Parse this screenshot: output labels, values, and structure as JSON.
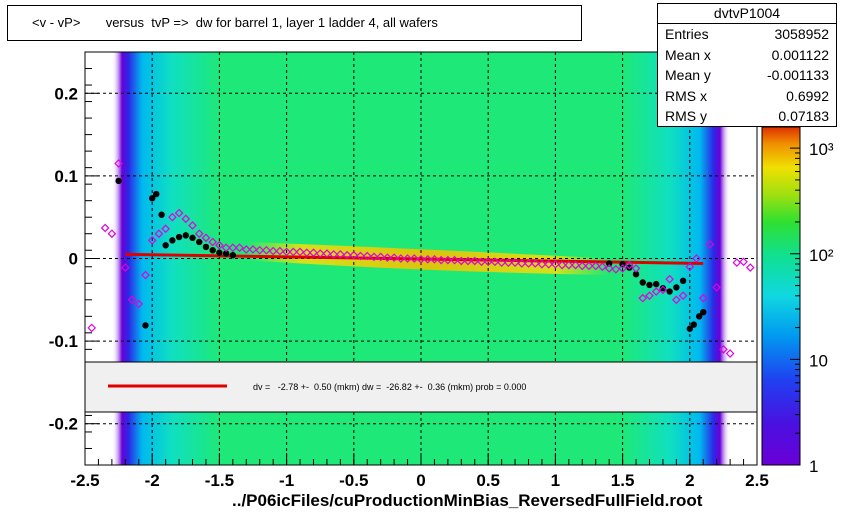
{
  "title": "<v - vP>       versus  tvP =>  dw for barrel 1, layer 1 ladder 4, all wafers",
  "x_axis_title": "../P06icFiles/cuProductionMinBias_ReversedFullField.root",
  "stats": {
    "name": "dvtvP1004",
    "rows": [
      {
        "label": "Entries",
        "value": "3058952"
      },
      {
        "label": "Mean x",
        "value": "0.001122"
      },
      {
        "label": "Mean y",
        "value": "-0.001133"
      },
      {
        "label": "RMS x",
        "value": "0.6992"
      },
      {
        "label": "RMS y",
        "value": "0.07183"
      }
    ]
  },
  "legend": {
    "fit_text": "dv =   -2.78 +-  0.50 (mkm) dw =  -26.82 +-  0.36 (mkm) prob = 0.000"
  },
  "colors": {
    "fit_line": "#e00000",
    "profile_black": "#000000",
    "profile_magenta": "#e000e0",
    "legend_bg": "#f0f0f0"
  },
  "chart_data": {
    "type": "heatmap",
    "xlim": [
      -2.5,
      2.5
    ],
    "ylim": [
      -0.25,
      0.25
    ],
    "x_ticks": [
      -2.5,
      -2,
      -1.5,
      -1,
      -0.5,
      0,
      0.5,
      1,
      1.5,
      2,
      2.5
    ],
    "x_tick_labels": [
      "-2.5",
      "-2",
      "-1.5",
      "-1",
      "-0.5",
      "0",
      "0.5",
      "1",
      "1.5",
      "2",
      "2.5"
    ],
    "y_ticks": [
      -0.2,
      -0.1,
      0,
      0.1,
      0.2
    ],
    "y_tick_labels": [
      "-0.2",
      "-0.1",
      "0",
      "0.1",
      "0.2"
    ],
    "colorbar": {
      "scale": "log",
      "range": [
        1,
        1000
      ],
      "tick_labels": [
        "1",
        "10",
        "10²",
        "10³"
      ]
    },
    "fit_line": {
      "x": [
        -2.2,
        2.1
      ],
      "y": [
        0.005,
        -0.006
      ]
    },
    "series": [
      {
        "marker": "filled-circle",
        "color": "#000000",
        "points": [
          {
            "x": -2.25,
            "y": 0.094
          },
          {
            "x": -2.05,
            "y": -0.081
          },
          {
            "x": -2.0,
            "y": 0.073
          },
          {
            "x": -1.97,
            "y": 0.078
          },
          {
            "x": -1.93,
            "y": 0.053
          },
          {
            "x": -1.9,
            "y": 0.016
          },
          {
            "x": -1.85,
            "y": 0.022
          },
          {
            "x": -1.8,
            "y": 0.026
          },
          {
            "x": -1.75,
            "y": 0.028
          },
          {
            "x": -1.7,
            "y": 0.025
          },
          {
            "x": -1.65,
            "y": 0.02
          },
          {
            "x": -1.6,
            "y": 0.014
          },
          {
            "x": -1.55,
            "y": 0.01
          },
          {
            "x": -1.5,
            "y": 0.007
          },
          {
            "x": -1.45,
            "y": 0.006
          },
          {
            "x": -1.4,
            "y": 0.004
          },
          {
            "x": 1.4,
            "y": -0.006
          },
          {
            "x": 1.5,
            "y": -0.007
          },
          {
            "x": 1.55,
            "y": -0.011
          },
          {
            "x": 1.6,
            "y": -0.019
          },
          {
            "x": 1.65,
            "y": -0.029
          },
          {
            "x": 1.7,
            "y": -0.032
          },
          {
            "x": 1.75,
            "y": -0.031
          },
          {
            "x": 1.8,
            "y": -0.036
          },
          {
            "x": 1.85,
            "y": -0.04
          },
          {
            "x": 1.9,
            "y": -0.035
          },
          {
            "x": 1.95,
            "y": -0.027
          },
          {
            "x": 2.0,
            "y": -0.085
          },
          {
            "x": 2.03,
            "y": -0.08
          },
          {
            "x": 2.07,
            "y": -0.07
          },
          {
            "x": 2.1,
            "y": -0.065
          }
        ]
      },
      {
        "marker": "open-diamond",
        "color": "#e000e0",
        "points": [
          {
            "x": -2.45,
            "y": -0.084
          },
          {
            "x": -2.35,
            "y": 0.037
          },
          {
            "x": -2.3,
            "y": 0.03
          },
          {
            "x": -2.25,
            "y": 0.115
          },
          {
            "x": -2.2,
            "y": -0.011
          },
          {
            "x": -2.15,
            "y": -0.05
          },
          {
            "x": -2.1,
            "y": -0.055
          },
          {
            "x": -2.05,
            "y": -0.02
          },
          {
            "x": -2.0,
            "y": 0.022
          },
          {
            "x": -1.95,
            "y": 0.03
          },
          {
            "x": -1.9,
            "y": 0.036
          },
          {
            "x": -1.85,
            "y": 0.05
          },
          {
            "x": -1.8,
            "y": 0.055
          },
          {
            "x": -1.75,
            "y": 0.048
          },
          {
            "x": -1.7,
            "y": 0.04
          },
          {
            "x": -1.65,
            "y": 0.03
          },
          {
            "x": -1.6,
            "y": 0.025
          },
          {
            "x": -1.55,
            "y": 0.02
          },
          {
            "x": -1.5,
            "y": 0.016
          },
          {
            "x": -1.45,
            "y": 0.013
          },
          {
            "x": -1.4,
            "y": 0.013
          },
          {
            "x": -1.35,
            "y": 0.013
          },
          {
            "x": -1.3,
            "y": 0.011
          },
          {
            "x": -1.25,
            "y": 0.011
          },
          {
            "x": -1.2,
            "y": 0.01
          },
          {
            "x": -1.15,
            "y": 0.01
          },
          {
            "x": -1.1,
            "y": 0.009
          },
          {
            "x": -1.05,
            "y": 0.009
          },
          {
            "x": -1.0,
            "y": 0.008
          },
          {
            "x": -0.95,
            "y": 0.008
          },
          {
            "x": -0.9,
            "y": 0.008
          },
          {
            "x": -0.85,
            "y": 0.007
          },
          {
            "x": -0.8,
            "y": 0.007
          },
          {
            "x": -0.75,
            "y": 0.006
          },
          {
            "x": -0.7,
            "y": 0.006
          },
          {
            "x": -0.65,
            "y": 0.005
          },
          {
            "x": -0.6,
            "y": 0.005
          },
          {
            "x": -0.55,
            "y": 0.004
          },
          {
            "x": -0.5,
            "y": 0.004
          },
          {
            "x": -0.45,
            "y": 0.003
          },
          {
            "x": -0.4,
            "y": 0.003
          },
          {
            "x": -0.35,
            "y": 0.002
          },
          {
            "x": -0.3,
            "y": 0.002
          },
          {
            "x": -0.25,
            "y": 0.001
          },
          {
            "x": -0.2,
            "y": 0.001
          },
          {
            "x": -0.15,
            "y": 0.0
          },
          {
            "x": -0.1,
            "y": 0.0
          },
          {
            "x": -0.05,
            "y": 0.0
          },
          {
            "x": 0.0,
            "y": -0.001
          },
          {
            "x": 0.05,
            "y": -0.001
          },
          {
            "x": 0.1,
            "y": -0.001
          },
          {
            "x": 0.15,
            "y": -0.002
          },
          {
            "x": 0.2,
            "y": -0.002
          },
          {
            "x": 0.25,
            "y": -0.002
          },
          {
            "x": 0.3,
            "y": -0.003
          },
          {
            "x": 0.35,
            "y": -0.003
          },
          {
            "x": 0.4,
            "y": -0.003
          },
          {
            "x": 0.45,
            "y": -0.004
          },
          {
            "x": 0.5,
            "y": -0.004
          },
          {
            "x": 0.55,
            "y": -0.004
          },
          {
            "x": 0.6,
            "y": -0.005
          },
          {
            "x": 0.65,
            "y": -0.005
          },
          {
            "x": 0.7,
            "y": -0.005
          },
          {
            "x": 0.75,
            "y": -0.006
          },
          {
            "x": 0.8,
            "y": -0.006
          },
          {
            "x": 0.85,
            "y": -0.006
          },
          {
            "x": 0.9,
            "y": -0.007
          },
          {
            "x": 0.95,
            "y": -0.007
          },
          {
            "x": 1.0,
            "y": -0.007
          },
          {
            "x": 1.05,
            "y": -0.008
          },
          {
            "x": 1.1,
            "y": -0.008
          },
          {
            "x": 1.15,
            "y": -0.008
          },
          {
            "x": 1.2,
            "y": -0.009
          },
          {
            "x": 1.25,
            "y": -0.009
          },
          {
            "x": 1.3,
            "y": -0.009
          },
          {
            "x": 1.35,
            "y": -0.01
          },
          {
            "x": 1.4,
            "y": -0.012
          },
          {
            "x": 1.45,
            "y": -0.013
          },
          {
            "x": 1.5,
            "y": -0.012
          },
          {
            "x": 1.55,
            "y": -0.008
          },
          {
            "x": 1.6,
            "y": -0.012
          },
          {
            "x": 1.65,
            "y": -0.048
          },
          {
            "x": 1.7,
            "y": -0.045
          },
          {
            "x": 1.75,
            "y": -0.04
          },
          {
            "x": 1.8,
            "y": -0.038
          },
          {
            "x": 1.85,
            "y": -0.025
          },
          {
            "x": 1.9,
            "y": -0.05
          },
          {
            "x": 1.95,
            "y": -0.045
          },
          {
            "x": 2.0,
            "y": -0.01
          },
          {
            "x": 2.05,
            "y": 0.0
          },
          {
            "x": 2.1,
            "y": -0.048
          },
          {
            "x": 2.15,
            "y": 0.017
          },
          {
            "x": 2.2,
            "y": -0.035
          },
          {
            "x": 2.25,
            "y": -0.11
          },
          {
            "x": 2.3,
            "y": -0.115
          },
          {
            "x": 2.35,
            "y": -0.005
          },
          {
            "x": 2.4,
            "y": -0.004
          },
          {
            "x": 2.45,
            "y": -0.011
          }
        ]
      }
    ]
  }
}
